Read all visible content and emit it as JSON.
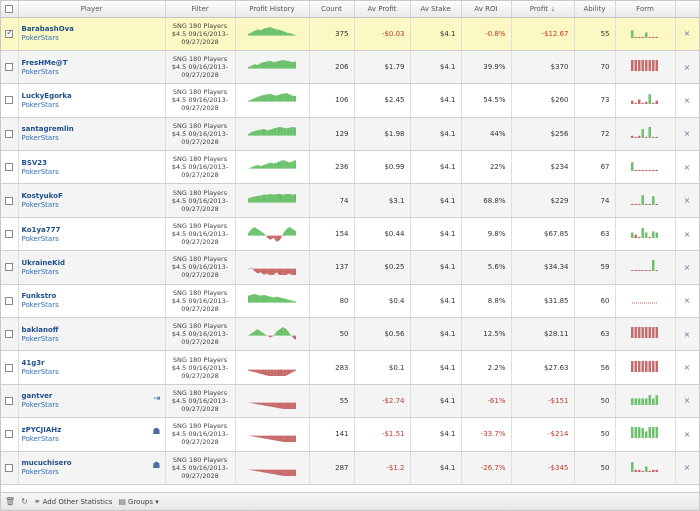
{
  "header": {
    "player": "Player",
    "filter": "Filter",
    "profit_history": "Profit History",
    "count": "Count",
    "av_profit": "Av Profit",
    "av_stake": "Av Stake",
    "av_roi": "Av ROI",
    "profit": "Profit",
    "profit_sort": "⇣",
    "ability": "Ability",
    "form": "Form"
  },
  "filter_text": "SNG 180 Players $4.5 09/16/2013-09/27/2028",
  "colors": {
    "green": "#6cc26c",
    "red": "#c96a6a",
    "selected_row": "#fcf8c3",
    "link": "#1d4f8c"
  },
  "rows": [
    {
      "name": "BarabashOva",
      "site": "PokerStars",
      "count": "375",
      "av_profit": "-$0.03",
      "av_stake": "$4.1",
      "av_roi": "-0.8%",
      "profit": "-$12.67",
      "ability": "55",
      "selected": true,
      "neg": true,
      "icon": "",
      "graph": [
        2,
        4,
        6,
        8,
        7,
        9,
        10,
        11,
        9,
        8,
        7,
        6,
        4,
        3,
        2,
        0
      ],
      "form": "gsss",
      "form_bars": [
        0.7,
        0.1,
        0.1,
        0.1,
        0.5,
        0.1,
        0.1,
        0.1
      ]
    },
    {
      "name": "FresHMe@T",
      "site": "PokerStars",
      "count": "206",
      "av_profit": "$1.79",
      "av_stake": "$4.1",
      "av_roi": "39.9%",
      "profit": "$370",
      "ability": "70",
      "selected": false,
      "neg": false,
      "icon": "",
      "graph": [
        2,
        4,
        6,
        5,
        8,
        9,
        10,
        11,
        9,
        10,
        11,
        12,
        11,
        10,
        9,
        10
      ],
      "form": "rrrr",
      "form_bars": [
        1,
        1,
        1,
        1,
        1,
        1,
        1,
        1
      ]
    },
    {
      "name": "LuckyEgorka",
      "site": "PokerStars",
      "count": "106",
      "av_profit": "$2.45",
      "av_stake": "$4.1",
      "av_roi": "54.5%",
      "profit": "$260",
      "ability": "73",
      "selected": false,
      "neg": false,
      "icon": "",
      "graph": [
        1,
        3,
        5,
        7,
        9,
        10,
        11,
        12,
        10,
        9,
        11,
        12,
        13,
        11,
        9,
        8
      ],
      "form": "mix",
      "form_bars": [
        0.3,
        0.1,
        0.4,
        0.1,
        0.2,
        0.9,
        0.1,
        0.3
      ]
    },
    {
      "name": "santagremlin",
      "site": "PokerStars",
      "count": "129",
      "av_profit": "$1.98",
      "av_stake": "$4.1",
      "av_roi": "44%",
      "profit": "$256",
      "ability": "72",
      "selected": false,
      "neg": false,
      "icon": "",
      "graph": [
        2,
        5,
        7,
        8,
        9,
        10,
        8,
        9,
        11,
        12,
        13,
        12,
        11,
        12,
        13,
        12
      ],
      "form": "mix",
      "form_bars": [
        0.2,
        0.1,
        0.2,
        0.8,
        0.1,
        1,
        0.1,
        0.1
      ]
    },
    {
      "name": "BSV23",
      "site": "PokerStars",
      "count": "236",
      "av_profit": "$0.99",
      "av_stake": "$4.1",
      "av_roi": "22%",
      "profit": "$234",
      "ability": "67",
      "selected": false,
      "neg": false,
      "icon": "",
      "graph": [
        0,
        1,
        2,
        3,
        2,
        3,
        4,
        5,
        4,
        5,
        6,
        7,
        6,
        5,
        6,
        7
      ],
      "form": "mix",
      "form_bars": [
        0.8,
        0.1,
        0.1,
        0.1,
        0.1,
        0.1,
        0.1,
        0.1
      ]
    },
    {
      "name": "KostyukoF",
      "site": "PokerStars",
      "count": "74",
      "av_profit": "$3.1",
      "av_stake": "$4.1",
      "av_roi": "68.8%",
      "profit": "$229",
      "ability": "74",
      "selected": false,
      "neg": false,
      "icon": "",
      "graph": [
        6,
        8,
        9,
        10,
        11,
        12,
        12,
        13,
        12,
        13,
        13,
        12,
        13,
        13,
        12,
        13
      ],
      "form": "mix",
      "form_bars": [
        0.1,
        0.1,
        0.1,
        0.9,
        0.1,
        0.1,
        0.8,
        0.1
      ]
    },
    {
      "name": "Ko1ya777",
      "site": "PokerStars",
      "count": "154",
      "av_profit": "$0.44",
      "av_stake": "$4.1",
      "av_roi": "9.8%",
      "profit": "$67.85",
      "ability": "63",
      "selected": false,
      "neg": false,
      "icon": "",
      "graph": [
        1,
        3,
        4,
        3,
        2,
        1,
        -1,
        -2,
        -1,
        -3,
        -2,
        1,
        3,
        4,
        3,
        2
      ],
      "form": "mix",
      "form_bars": [
        0.5,
        0.3,
        0.1,
        0.9,
        0.5,
        0.1,
        0.6,
        0.5
      ]
    },
    {
      "name": "UkraineKid",
      "site": "PokerStars",
      "count": "137",
      "av_profit": "$0.25",
      "av_stake": "$4.1",
      "av_roi": "5.6%",
      "profit": "$34.34",
      "ability": "59",
      "selected": false,
      "neg": false,
      "icon": "",
      "graph": [
        -1,
        1,
        -2,
        -4,
        -3,
        -5,
        -4,
        -6,
        -5,
        -3,
        -6,
        -7,
        -5,
        -4,
        -6,
        -7
      ],
      "form": "mix",
      "form_bars": [
        0,
        0,
        0,
        0,
        0,
        0,
        1,
        0
      ]
    },
    {
      "name": "Funkstro",
      "site": "PokerStars",
      "count": "80",
      "av_profit": "$0.4",
      "av_stake": "$4.1",
      "av_roi": "8.8%",
      "profit": "$31.85",
      "ability": "60",
      "selected": false,
      "neg": false,
      "icon": "",
      "graph": [
        8,
        9,
        10,
        9,
        8,
        9,
        8,
        7,
        6,
        7,
        6,
        5,
        4,
        3,
        2,
        1
      ],
      "form": "dash",
      "form_bars": [
        0.1,
        0.1,
        0.1,
        0.1,
        0.1,
        0.1,
        0.1,
        0.1
      ]
    },
    {
      "name": "baklanoff",
      "site": "PokerStars",
      "count": "50",
      "av_profit": "$0.56",
      "av_stake": "$4.1",
      "av_roi": "12.5%",
      "profit": "$28.11",
      "ability": "63",
      "selected": false,
      "neg": false,
      "icon": "",
      "graph": [
        0,
        1,
        2,
        3,
        2,
        1,
        0,
        -1,
        0,
        2,
        3,
        4,
        3,
        1,
        -1,
        -2
      ],
      "form": "rrrr",
      "form_bars": [
        1,
        1,
        1,
        1,
        1,
        1,
        1,
        1
      ]
    },
    {
      "name": "41g3r",
      "site": "PokerStars",
      "count": "283",
      "av_profit": "$0.1",
      "av_stake": "$4.1",
      "av_roi": "2.2%",
      "profit": "$27.63",
      "ability": "56",
      "selected": false,
      "neg": false,
      "icon": "",
      "graph": [
        -1,
        -2,
        -3,
        -4,
        -5,
        -6,
        -7,
        -8,
        -9,
        -10,
        -9,
        -8,
        -7,
        -5,
        -3,
        -1
      ],
      "form": "rrrr",
      "form_bars": [
        1,
        1,
        1,
        1,
        1,
        1,
        1,
        1
      ]
    },
    {
      "name": "gantver",
      "site": "PokerStars",
      "count": "55",
      "av_profit": "-$2.74",
      "av_stake": "$4.1",
      "av_roi": "-61%",
      "profit": "-$151",
      "ability": "50",
      "selected": false,
      "neg": true,
      "icon": "⇥",
      "graph": [
        0,
        -1,
        -2,
        -3,
        -4,
        -5,
        -6,
        -7,
        -8,
        -9,
        -10,
        -11,
        -12,
        -13,
        -14,
        -15
      ],
      "form": "mix",
      "form_bars": [
        0.6,
        0.6,
        0.6,
        0.6,
        0.6,
        0.9,
        0.6,
        0.9
      ]
    },
    {
      "name": "zPYCJIAHz",
      "site": "PokerStars",
      "count": "141",
      "av_profit": "-$1.51",
      "av_stake": "$4.1",
      "av_roi": "-33.7%",
      "profit": "-$214",
      "ability": "50",
      "selected": false,
      "neg": true,
      "icon": "☗",
      "graph": [
        0,
        -1,
        -2,
        -3,
        -4,
        -5,
        -6,
        -7,
        -8,
        -9,
        -10,
        -11,
        -12,
        -13,
        -14,
        -15
      ],
      "form": "mix",
      "form_bars": [
        1,
        1,
        1,
        0.9,
        0.6,
        1,
        1,
        1
      ]
    },
    {
      "name": "mucuchisero",
      "site": "PokerStars",
      "count": "287",
      "av_profit": "-$1.2",
      "av_stake": "$4.1",
      "av_roi": "-26.7%",
      "profit": "-$345",
      "ability": "50",
      "selected": false,
      "neg": true,
      "icon": "☗",
      "graph": [
        0,
        -1,
        -2,
        -3,
        -4,
        -5,
        -6,
        -7,
        -8,
        -9,
        -10,
        -11,
        -12,
        -13,
        -14,
        -15
      ],
      "form": "mix",
      "form_bars": [
        0.9,
        0.2,
        0.2,
        0.1,
        0.5,
        0.1,
        0.2,
        0.2
      ]
    }
  ],
  "footer": {
    "add_stats": "Add Other Statistics",
    "groups": "Groups ▾"
  }
}
